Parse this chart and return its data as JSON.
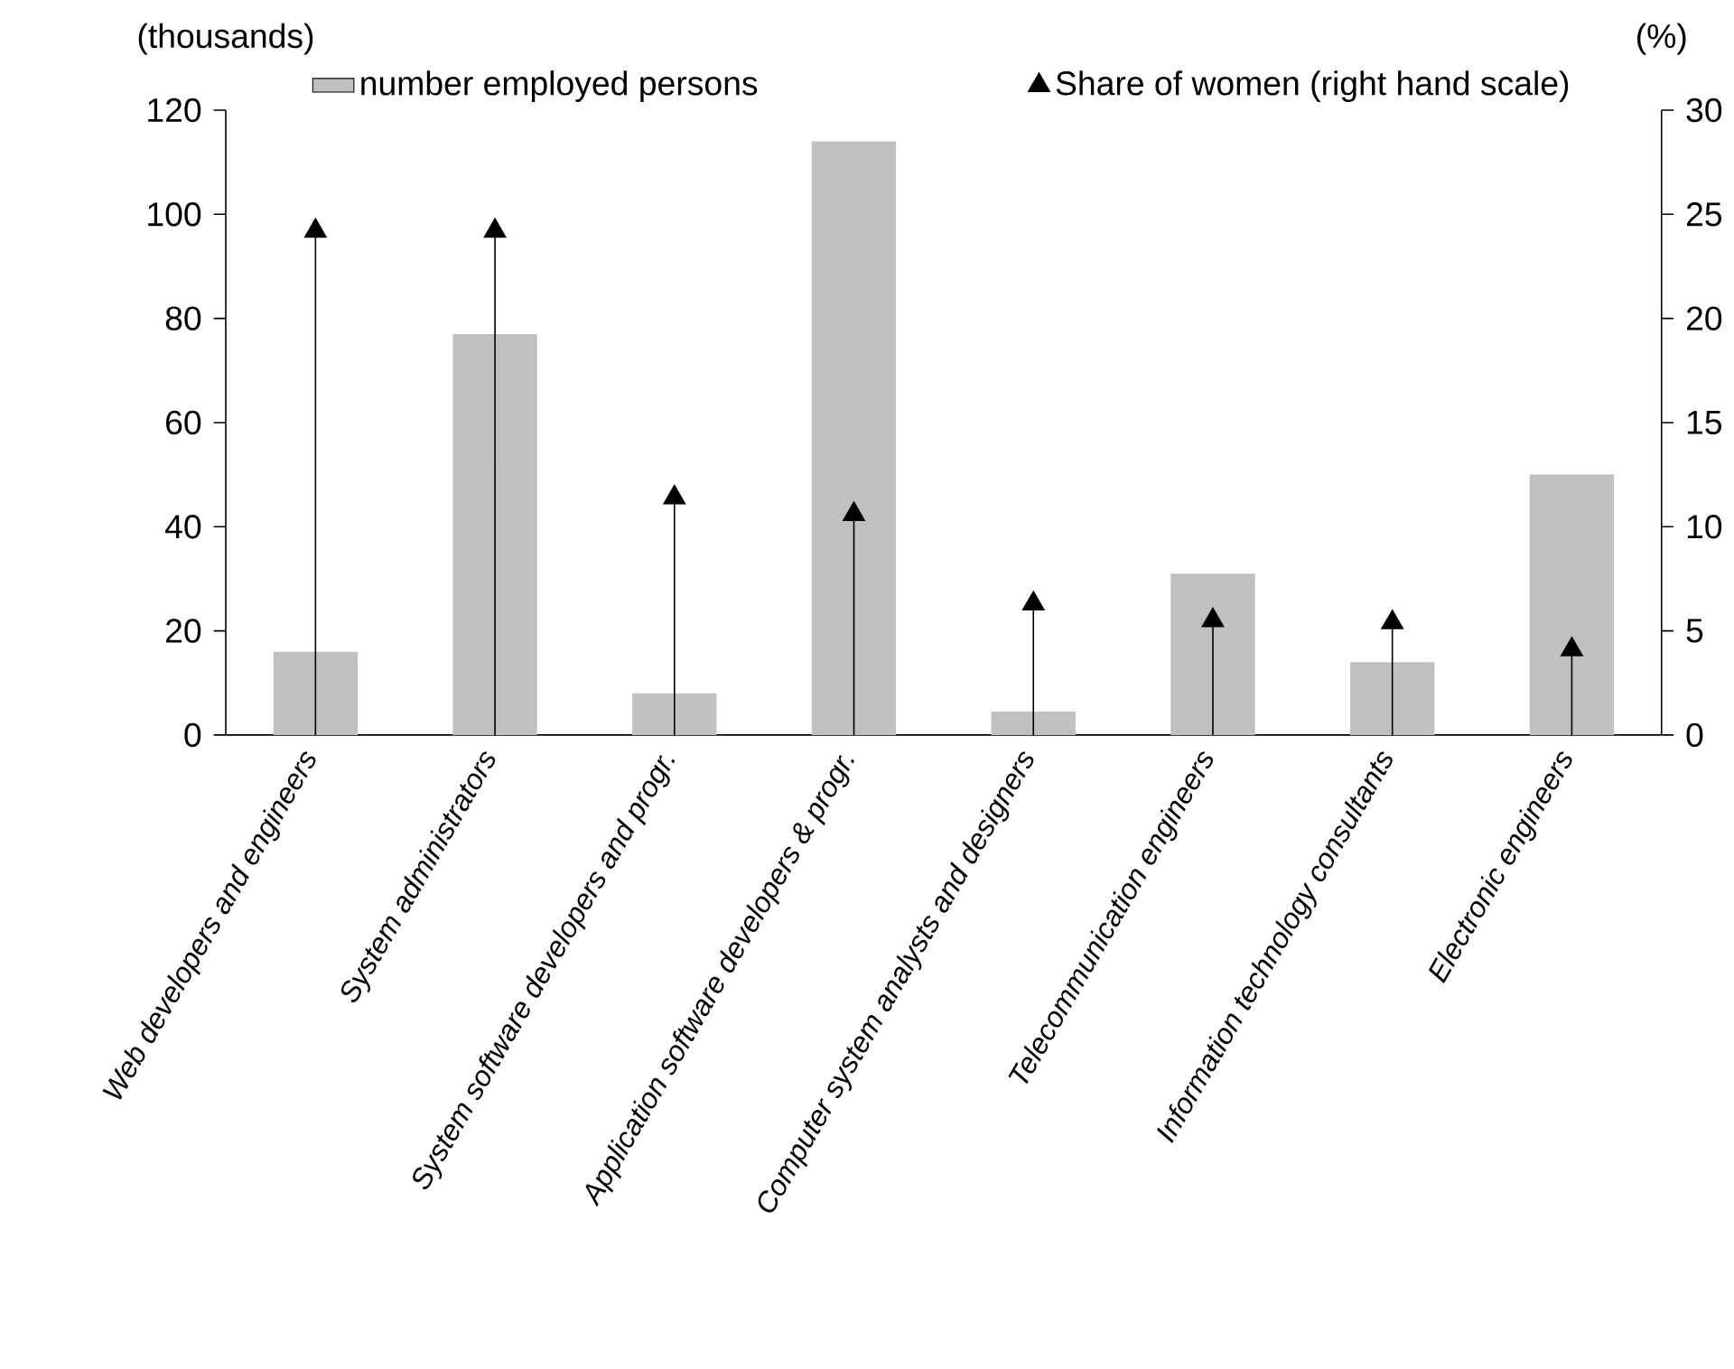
{
  "chart_data": {
    "type": "bar",
    "ylabel": "(thousands)",
    "y2label": "(%)",
    "categories": [
      "Web developers and engineers",
      "System administrators",
      "System software developers and progr.",
      "Application software developers & progr.",
      "Computer system analysts and designers",
      "Telecommunication engineers",
      "Information technology consultants",
      "Electronic engineers"
    ],
    "series": [
      {
        "name": "number employed persons",
        "color": "#c0c0c0",
        "values": [
          16,
          77,
          8,
          114,
          4.5,
          31,
          14,
          50
        ]
      },
      {
        "name": "Share of women (right hand scale)",
        "type": "lollipop",
        "axis": "y2",
        "marker": "triangle",
        "color": "#000000",
        "values": [
          24.2,
          24.2,
          11.4,
          10.6,
          6.3,
          5.5,
          5.4,
          4.1
        ]
      }
    ],
    "ylim": [
      0,
      120
    ],
    "yticks": [
      0,
      20,
      40,
      60,
      80,
      100,
      120
    ],
    "y2lim": [
      0,
      30
    ],
    "y2ticks": [
      0,
      5,
      10,
      15,
      20,
      25,
      30
    ],
    "legend": "top"
  }
}
